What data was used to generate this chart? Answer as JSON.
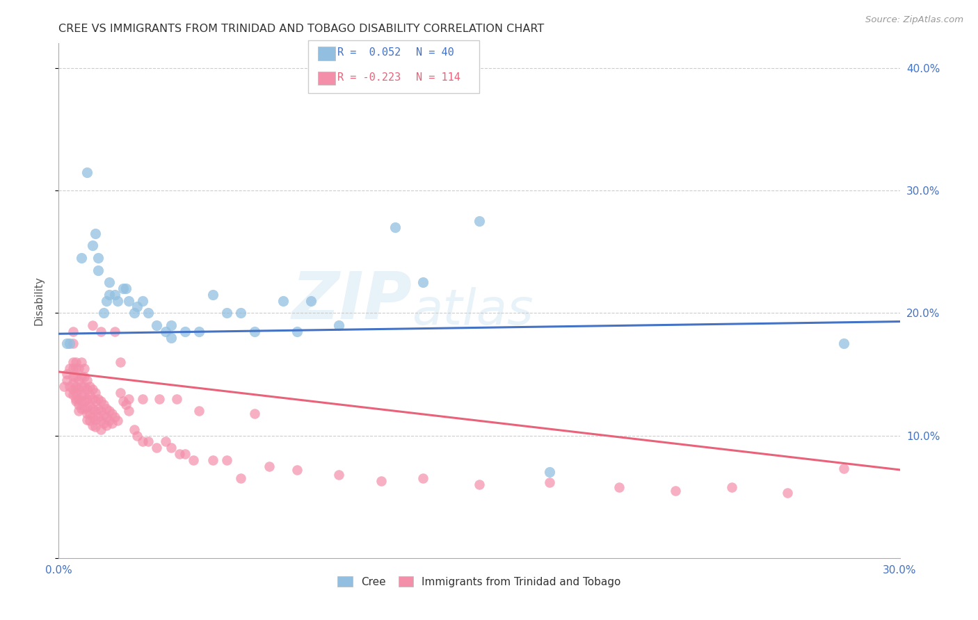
{
  "title": "CREE VS IMMIGRANTS FROM TRINIDAD AND TOBAGO DISABILITY CORRELATION CHART",
  "source": "Source: ZipAtlas.com",
  "ylabel": "Disability",
  "xlim": [
    0.0,
    0.3
  ],
  "ylim": [
    0.0,
    0.42
  ],
  "yticks": [
    0.0,
    0.1,
    0.2,
    0.3,
    0.4
  ],
  "ytick_labels": [
    "",
    "10.0%",
    "20.0%",
    "30.0%",
    "40.0%"
  ],
  "xticks": [
    0.0,
    0.15,
    0.3
  ],
  "xtick_labels": [
    "0.0%",
    "",
    "30.0%"
  ],
  "color_blue": "#92BFE0",
  "color_pink": "#F48FAA",
  "line_blue": "#4472C4",
  "line_pink": "#E8637A",
  "watermark_zip": "ZIP",
  "watermark_atlas": "atlas",
  "cree_points": [
    [
      0.003,
      0.175
    ],
    [
      0.004,
      0.175
    ],
    [
      0.008,
      0.245
    ],
    [
      0.01,
      0.315
    ],
    [
      0.012,
      0.255
    ],
    [
      0.013,
      0.265
    ],
    [
      0.014,
      0.245
    ],
    [
      0.014,
      0.235
    ],
    [
      0.016,
      0.2
    ],
    [
      0.017,
      0.21
    ],
    [
      0.018,
      0.225
    ],
    [
      0.018,
      0.215
    ],
    [
      0.02,
      0.215
    ],
    [
      0.021,
      0.21
    ],
    [
      0.023,
      0.22
    ],
    [
      0.024,
      0.22
    ],
    [
      0.025,
      0.21
    ],
    [
      0.027,
      0.2
    ],
    [
      0.028,
      0.205
    ],
    [
      0.03,
      0.21
    ],
    [
      0.032,
      0.2
    ],
    [
      0.035,
      0.19
    ],
    [
      0.038,
      0.185
    ],
    [
      0.04,
      0.19
    ],
    [
      0.04,
      0.18
    ],
    [
      0.045,
      0.185
    ],
    [
      0.05,
      0.185
    ],
    [
      0.055,
      0.215
    ],
    [
      0.06,
      0.2
    ],
    [
      0.065,
      0.2
    ],
    [
      0.07,
      0.185
    ],
    [
      0.08,
      0.21
    ],
    [
      0.085,
      0.185
    ],
    [
      0.09,
      0.21
    ],
    [
      0.1,
      0.19
    ],
    [
      0.12,
      0.27
    ],
    [
      0.13,
      0.225
    ],
    [
      0.15,
      0.275
    ],
    [
      0.175,
      0.07
    ],
    [
      0.28,
      0.175
    ]
  ],
  "trinidad_points": [
    [
      0.002,
      0.14
    ],
    [
      0.003,
      0.15
    ],
    [
      0.003,
      0.145
    ],
    [
      0.004,
      0.155
    ],
    [
      0.004,
      0.14
    ],
    [
      0.004,
      0.135
    ],
    [
      0.005,
      0.185
    ],
    [
      0.005,
      0.175
    ],
    [
      0.005,
      0.16
    ],
    [
      0.005,
      0.155
    ],
    [
      0.005,
      0.148
    ],
    [
      0.005,
      0.143
    ],
    [
      0.005,
      0.138
    ],
    [
      0.005,
      0.133
    ],
    [
      0.006,
      0.13
    ],
    [
      0.006,
      0.14
    ],
    [
      0.006,
      0.148
    ],
    [
      0.006,
      0.155
    ],
    [
      0.006,
      0.16
    ],
    [
      0.006,
      0.135
    ],
    [
      0.006,
      0.128
    ],
    [
      0.007,
      0.155
    ],
    [
      0.007,
      0.145
    ],
    [
      0.007,
      0.138
    ],
    [
      0.007,
      0.13
    ],
    [
      0.007,
      0.125
    ],
    [
      0.007,
      0.12
    ],
    [
      0.008,
      0.16
    ],
    [
      0.008,
      0.148
    ],
    [
      0.008,
      0.14
    ],
    [
      0.008,
      0.133
    ],
    [
      0.008,
      0.128
    ],
    [
      0.008,
      0.122
    ],
    [
      0.009,
      0.155
    ],
    [
      0.009,
      0.148
    ],
    [
      0.009,
      0.14
    ],
    [
      0.009,
      0.133
    ],
    [
      0.009,
      0.128
    ],
    [
      0.009,
      0.122
    ],
    [
      0.01,
      0.145
    ],
    [
      0.01,
      0.138
    ],
    [
      0.01,
      0.13
    ],
    [
      0.01,
      0.123
    ],
    [
      0.01,
      0.118
    ],
    [
      0.01,
      0.113
    ],
    [
      0.011,
      0.14
    ],
    [
      0.011,
      0.133
    ],
    [
      0.011,
      0.125
    ],
    [
      0.011,
      0.118
    ],
    [
      0.011,
      0.112
    ],
    [
      0.012,
      0.19
    ],
    [
      0.012,
      0.138
    ],
    [
      0.012,
      0.13
    ],
    [
      0.012,
      0.122
    ],
    [
      0.012,
      0.115
    ],
    [
      0.012,
      0.108
    ],
    [
      0.013,
      0.135
    ],
    [
      0.013,
      0.128
    ],
    [
      0.013,
      0.12
    ],
    [
      0.013,
      0.113
    ],
    [
      0.013,
      0.107
    ],
    [
      0.014,
      0.13
    ],
    [
      0.014,
      0.122
    ],
    [
      0.014,
      0.115
    ],
    [
      0.015,
      0.185
    ],
    [
      0.015,
      0.128
    ],
    [
      0.015,
      0.12
    ],
    [
      0.015,
      0.112
    ],
    [
      0.015,
      0.105
    ],
    [
      0.016,
      0.125
    ],
    [
      0.016,
      0.117
    ],
    [
      0.016,
      0.11
    ],
    [
      0.017,
      0.122
    ],
    [
      0.017,
      0.115
    ],
    [
      0.017,
      0.108
    ],
    [
      0.018,
      0.12
    ],
    [
      0.018,
      0.112
    ],
    [
      0.019,
      0.118
    ],
    [
      0.019,
      0.11
    ],
    [
      0.02,
      0.185
    ],
    [
      0.02,
      0.115
    ],
    [
      0.021,
      0.112
    ],
    [
      0.022,
      0.16
    ],
    [
      0.022,
      0.135
    ],
    [
      0.023,
      0.128
    ],
    [
      0.024,
      0.125
    ],
    [
      0.025,
      0.13
    ],
    [
      0.025,
      0.12
    ],
    [
      0.027,
      0.105
    ],
    [
      0.028,
      0.1
    ],
    [
      0.03,
      0.13
    ],
    [
      0.03,
      0.095
    ],
    [
      0.032,
      0.095
    ],
    [
      0.035,
      0.09
    ],
    [
      0.036,
      0.13
    ],
    [
      0.038,
      0.095
    ],
    [
      0.04,
      0.09
    ],
    [
      0.042,
      0.13
    ],
    [
      0.043,
      0.085
    ],
    [
      0.045,
      0.085
    ],
    [
      0.048,
      0.08
    ],
    [
      0.05,
      0.12
    ],
    [
      0.055,
      0.08
    ],
    [
      0.06,
      0.08
    ],
    [
      0.065,
      0.065
    ],
    [
      0.07,
      0.118
    ],
    [
      0.075,
      0.075
    ],
    [
      0.085,
      0.072
    ],
    [
      0.1,
      0.068
    ],
    [
      0.115,
      0.063
    ],
    [
      0.13,
      0.065
    ],
    [
      0.15,
      0.06
    ],
    [
      0.175,
      0.062
    ],
    [
      0.2,
      0.058
    ],
    [
      0.22,
      0.055
    ],
    [
      0.24,
      0.058
    ],
    [
      0.26,
      0.053
    ],
    [
      0.28,
      0.073
    ]
  ],
  "cree_line": {
    "x0": 0.0,
    "y0": 0.183,
    "x1": 0.3,
    "y1": 0.193
  },
  "trinidad_line": {
    "x0": 0.0,
    "y0": 0.152,
    "x1": 0.3,
    "y1": 0.072
  }
}
